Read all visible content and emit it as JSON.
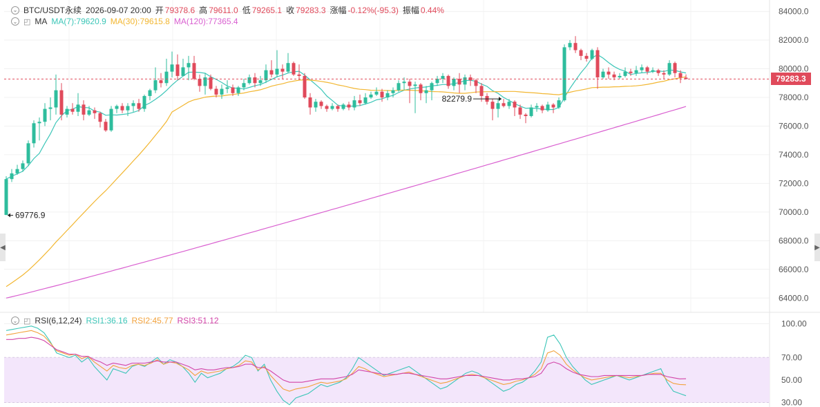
{
  "header": {
    "symbol": "BTC/USDT永续",
    "datetime": "2026-09-07 20:00",
    "open_label": "开",
    "open_value": "79378.6",
    "high_label": "高",
    "high_value": "79611.0",
    "low_label": "低",
    "low_value": "79265.1",
    "close_label": "收",
    "close_value": "79283.3",
    "change_label": "涨幅",
    "change_value": "-0.12%(-95.3)",
    "amplitude_label": "振幅",
    "amplitude_value": "0.44%"
  },
  "ma_legend": {
    "label": "MA",
    "ma7": "MA(7):79620.9",
    "ma30": "MA(30):79615.8",
    "ma120": "MA(120):77365.4"
  },
  "rsi_legend": {
    "label": "RSI(6,12,24)",
    "rsi1": "RSI1:36.16",
    "rsi2": "RSI2:45.77",
    "rsi3": "RSI3:51.12"
  },
  "current_price_tag": "79283.3",
  "colors": {
    "up": "#2ebd9d",
    "down": "#e04a5b",
    "ma7": "#3cc6b8",
    "ma30": "#f2b630",
    "ma120": "#d95fd0",
    "rsi1": "#3cc6b8",
    "rsi2": "#f2a23c",
    "rsi3": "#d244a8",
    "rsi_band": "#f3e6fb"
  },
  "icons": [
    "collapse-circle-icon",
    "bell-icon",
    "arrow-left-icon",
    "arrow-right-icon"
  ],
  "chart_data": [
    {
      "type": "candlestick",
      "title": "BTC/USDT永续",
      "y_ticks": [
        64000.0,
        66000.0,
        68000.0,
        70000.0,
        72000.0,
        74000.0,
        76000.0,
        78000.0,
        80000.0,
        82000.0,
        84000.0
      ],
      "ylim": [
        63000,
        84800
      ],
      "annotations": [
        {
          "text": "82279.9",
          "kind": "max",
          "candle_index": 90
        },
        {
          "text": "69776.9",
          "kind": "min",
          "candle_index": 0
        }
      ],
      "current_price": 79283.3,
      "candles": [
        [
          69800,
          72300,
          72500,
          69776.9
        ],
        [
          72300,
          72700,
          73000,
          72100
        ],
        [
          72700,
          73000,
          73300,
          72600
        ],
        [
          73000,
          73400,
          73600,
          72800
        ],
        [
          73400,
          74800,
          75000,
          73200
        ],
        [
          74800,
          76200,
          76400,
          74500
        ],
        [
          76200,
          76300,
          76600,
          75000
        ],
        [
          76300,
          77200,
          77600,
          76000
        ],
        [
          77200,
          77300,
          78000,
          76400
        ],
        [
          77300,
          78500,
          79600,
          76800
        ],
        [
          78500,
          76800,
          79000,
          76400
        ],
        [
          76800,
          77200,
          77400,
          76600
        ],
        [
          77200,
          77000,
          77600,
          76800
        ],
        [
          77000,
          77500,
          78300,
          76700
        ],
        [
          77500,
          76800,
          77800,
          76400
        ],
        [
          76800,
          77100,
          77400,
          76700
        ],
        [
          77100,
          76900,
          77300,
          76500
        ],
        [
          76900,
          76300,
          77000,
          75900
        ],
        [
          76300,
          75700,
          76500,
          75600
        ],
        [
          75700,
          77200,
          77400,
          75600
        ],
        [
          77200,
          77400,
          77500,
          76900
        ],
        [
          77400,
          77100,
          77600,
          76900
        ],
        [
          77100,
          77400,
          77600,
          76700
        ],
        [
          77400,
          77600,
          77800,
          77000
        ],
        [
          77600,
          77200,
          77900,
          77000
        ],
        [
          77200,
          78100,
          78200,
          77000
        ],
        [
          78100,
          78500,
          78600,
          77800
        ],
        [
          78500,
          79200,
          80100,
          78300
        ],
        [
          79200,
          79000,
          79700,
          78700
        ],
        [
          79000,
          79800,
          80700,
          78800
        ],
        [
          79800,
          80300,
          81200,
          79400
        ],
        [
          80300,
          79500,
          81000,
          79200
        ],
        [
          79500,
          80100,
          80700,
          79600
        ],
        [
          80100,
          80400,
          80900,
          79200
        ],
        [
          80400,
          79300,
          80900,
          79200
        ],
        [
          79300,
          78800,
          79600,
          78400
        ],
        [
          78800,
          79400,
          79700,
          78200
        ],
        [
          79400,
          78600,
          79600,
          78500
        ],
        [
          78600,
          78200,
          78800,
          78000
        ],
        [
          78200,
          78600,
          78900,
          77900
        ],
        [
          78600,
          78700,
          79200,
          78300
        ],
        [
          78700,
          78300,
          78900,
          78100
        ],
        [
          78300,
          78700,
          78800,
          78100
        ],
        [
          78700,
          79000,
          79300,
          78500
        ],
        [
          79000,
          79400,
          79600,
          78900
        ],
        [
          79400,
          79000,
          79700,
          78700
        ],
        [
          79000,
          79200,
          79500,
          78800
        ],
        [
          79200,
          79900,
          80300,
          79000
        ],
        [
          79900,
          79600,
          80600,
          79400
        ],
        [
          79600,
          80000,
          81300,
          79400
        ],
        [
          80000,
          79800,
          80300,
          79300
        ],
        [
          79800,
          80400,
          81100,
          79700
        ],
        [
          80400,
          79600,
          80500,
          79500
        ],
        [
          79600,
          79500,
          80300,
          79200
        ],
        [
          79500,
          78000,
          79700,
          77900
        ],
        [
          78000,
          77300,
          78300,
          76800
        ],
        [
          77300,
          77700,
          77900,
          77000
        ],
        [
          77700,
          77400,
          77800,
          77200
        ],
        [
          77400,
          77200,
          77500,
          77000
        ],
        [
          77200,
          77400,
          77600,
          77100
        ],
        [
          77400,
          77200,
          77500,
          77000
        ],
        [
          77200,
          77500,
          77600,
          77100
        ],
        [
          77500,
          77300,
          77700,
          77100
        ],
        [
          77300,
          77800,
          78100,
          77100
        ],
        [
          77800,
          77600,
          78200,
          77400
        ],
        [
          77600,
          78000,
          78300,
          77500
        ],
        [
          78000,
          78200,
          78400,
          77900
        ],
        [
          78200,
          78400,
          78700,
          78100
        ],
        [
          78400,
          78000,
          78600,
          77700
        ],
        [
          78000,
          78300,
          78500,
          77800
        ],
        [
          78300,
          78500,
          78700,
          78000
        ],
        [
          78500,
          79000,
          79200,
          78400
        ],
        [
          79000,
          79100,
          79400,
          78500
        ],
        [
          79100,
          78800,
          79300,
          77600
        ],
        [
          78800,
          78900,
          79100,
          76900
        ],
        [
          78900,
          78300,
          79000,
          77800
        ],
        [
          78300,
          78500,
          78800,
          77600
        ],
        [
          78500,
          79000,
          79100,
          77800
        ],
        [
          79000,
          79300,
          79500,
          78800
        ],
        [
          79300,
          79500,
          79700,
          79000
        ],
        [
          79500,
          78800,
          79600,
          78600
        ],
        [
          78800,
          79300,
          79400,
          78500
        ],
        [
          79300,
          78900,
          79700,
          78300
        ],
        [
          78900,
          79400,
          79600,
          78500
        ],
        [
          79400,
          79200,
          79600,
          78800
        ],
        [
          79200,
          78800,
          79300,
          78300
        ],
        [
          78800,
          78100,
          79000,
          77700
        ],
        [
          78100,
          77700,
          78300,
          77500
        ],
        [
          77700,
          77200,
          77900,
          76400
        ],
        [
          77200,
          77600,
          77900,
          76600
        ],
        [
          77600,
          77400,
          77900,
          77300
        ],
        [
          77400,
          77700,
          77900,
          77200
        ],
        [
          77700,
          77300,
          77800,
          76700
        ],
        [
          77300,
          76800,
          77500,
          76500
        ],
        [
          76800,
          76700,
          76900,
          76200
        ],
        [
          76700,
          77300,
          77500,
          76600
        ],
        [
          77300,
          77400,
          77600,
          77000
        ],
        [
          77400,
          77100,
          77500,
          76900
        ],
        [
          77100,
          77500,
          77700,
          77000
        ],
        [
          77500,
          77300,
          77600,
          76900
        ],
        [
          77300,
          77800,
          78000,
          77200
        ],
        [
          77800,
          81500,
          81700,
          77700
        ],
        [
          81500,
          81800,
          82000,
          81300
        ],
        [
          81800,
          81300,
          82279.9,
          81100
        ],
        [
          81300,
          80900,
          81400,
          80600
        ],
        [
          80900,
          80700,
          81100,
          80500
        ],
        [
          80700,
          81300,
          81400,
          80600
        ],
        [
          81300,
          79400,
          81500,
          78600
        ],
        [
          79400,
          79800,
          80000,
          79300
        ],
        [
          79800,
          79600,
          80100,
          79300
        ],
        [
          79600,
          79400,
          79800,
          79200
        ],
        [
          79400,
          79500,
          79700,
          79300
        ],
        [
          79500,
          79800,
          80100,
          79400
        ],
        [
          79800,
          79700,
          80000,
          79500
        ],
        [
          79700,
          79900,
          80200,
          79500
        ],
        [
          79900,
          80100,
          80300,
          79700
        ],
        [
          80100,
          79800,
          80200,
          79600
        ],
        [
          79800,
          79900,
          80100,
          79700
        ],
        [
          79900,
          79700,
          80000,
          79500
        ],
        [
          79700,
          79600,
          79900,
          79300
        ],
        [
          79600,
          80400,
          80600,
          79500
        ],
        [
          80400,
          79700,
          80500,
          79400
        ],
        [
          79700,
          79378.6,
          79900,
          79000
        ],
        [
          79378.6,
          79283.3,
          79611,
          79265.1
        ]
      ]
    },
    {
      "type": "line",
      "title": "RSI(6,12,24)",
      "y_ticks": [
        100.0,
        70.0,
        50.0,
        30.0
      ],
      "ylim": [
        26,
        104
      ],
      "band": [
        30,
        70
      ],
      "series": [
        {
          "name": "RSI1",
          "values": [
            94,
            95,
            96,
            97,
            98,
            96,
            92,
            84,
            74,
            72,
            70,
            72,
            66,
            70,
            62,
            56,
            50,
            60,
            58,
            56,
            62,
            64,
            62,
            66,
            70,
            64,
            68,
            66,
            62,
            56,
            48,
            56,
            52,
            54,
            56,
            60,
            62,
            66,
            72,
            70,
            58,
            64,
            50,
            40,
            32,
            28,
            34,
            36,
            38,
            42,
            46,
            44,
            46,
            48,
            52,
            60,
            70,
            66,
            62,
            58,
            54,
            56,
            58,
            60,
            62,
            58,
            54,
            50,
            46,
            42,
            44,
            48,
            52,
            56,
            58,
            56,
            52,
            48,
            44,
            40,
            42,
            46,
            48,
            52,
            58,
            66,
            88,
            90,
            82,
            70,
            62,
            56,
            50,
            46,
            48,
            50,
            52,
            54,
            52,
            50,
            52,
            54,
            56,
            58,
            60,
            48,
            40,
            38,
            36
          ]
        },
        {
          "name": "RSI2",
          "values": [
            90,
            91,
            92,
            93,
            94,
            92,
            89,
            83,
            76,
            74,
            72,
            73,
            69,
            71,
            66,
            62,
            58,
            63,
            61,
            60,
            63,
            64,
            63,
            65,
            68,
            64,
            66,
            65,
            62,
            59,
            54,
            58,
            56,
            57,
            58,
            60,
            61,
            63,
            67,
            66,
            59,
            62,
            54,
            48,
            42,
            40,
            42,
            43,
            44,
            46,
            48,
            47,
            48,
            49,
            51,
            56,
            62,
            60,
            57,
            55,
            53,
            54,
            55,
            56,
            57,
            55,
            53,
            51,
            49,
            47,
            48,
            50,
            52,
            54,
            55,
            54,
            52,
            50,
            48,
            46,
            47,
            49,
            50,
            52,
            55,
            60,
            74,
            76,
            72,
            64,
            59,
            55,
            52,
            50,
            51,
            52,
            53,
            54,
            53,
            52,
            53,
            54,
            55,
            56,
            56,
            50,
            47,
            46,
            45.77
          ]
        },
        {
          "name": "RSI3",
          "values": [
            86,
            86,
            87,
            87,
            88,
            87,
            85,
            81,
            77,
            75,
            73,
            73,
            71,
            71,
            68,
            66,
            63,
            65,
            64,
            63,
            65,
            65,
            65,
            66,
            67,
            66,
            66,
            66,
            64,
            62,
            59,
            60,
            59,
            59,
            60,
            61,
            61,
            62,
            64,
            64,
            61,
            61,
            58,
            54,
            50,
            48,
            48,
            48,
            49,
            50,
            51,
            51,
            51,
            52,
            53,
            55,
            59,
            58,
            57,
            56,
            55,
            55,
            55,
            56,
            56,
            55,
            54,
            53,
            52,
            51,
            51,
            52,
            53,
            54,
            54,
            54,
            53,
            52,
            51,
            50,
            50,
            51,
            51,
            52,
            53,
            56,
            64,
            66,
            64,
            60,
            57,
            55,
            54,
            53,
            53,
            54,
            54,
            54,
            54,
            54,
            54,
            54,
            55,
            55,
            55,
            53,
            52,
            51,
            51.12
          ]
        }
      ]
    }
  ]
}
